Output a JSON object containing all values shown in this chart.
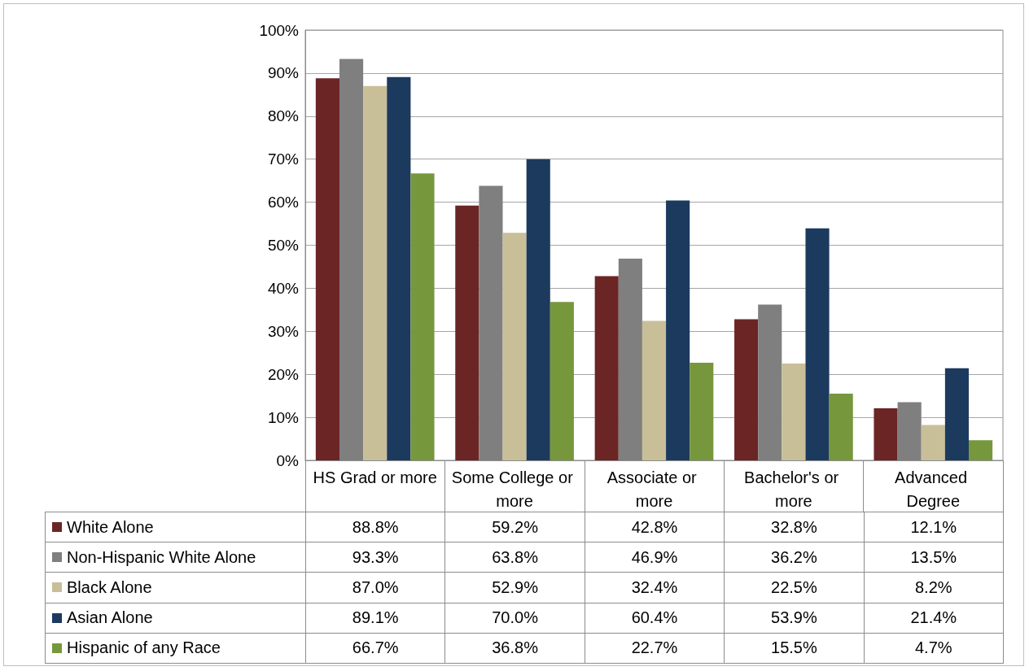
{
  "chart_data": {
    "type": "bar",
    "categories": [
      "HS Grad or more",
      "Some College or more",
      "Associate or more",
      "Bachelor's or more",
      "Advanced Degree"
    ],
    "series": [
      {
        "name": "White Alone",
        "color": "#6b2525",
        "values": [
          88.8,
          59.2,
          42.8,
          32.8,
          12.1
        ],
        "value_labels": [
          "88.8%",
          "59.2%",
          "42.8%",
          "32.8%",
          "12.1%"
        ]
      },
      {
        "name": "Non-Hispanic White Alone",
        "color": "#7f7f7f",
        "values": [
          93.3,
          63.8,
          46.9,
          36.2,
          13.5
        ],
        "value_labels": [
          "93.3%",
          "63.8%",
          "46.9%",
          "36.2%",
          "13.5%"
        ]
      },
      {
        "name": "Black Alone",
        "color": "#c8bf99",
        "values": [
          87.0,
          52.9,
          32.4,
          22.5,
          8.2
        ],
        "value_labels": [
          "87.0%",
          "52.9%",
          "32.4%",
          "22.5%",
          "8.2%"
        ]
      },
      {
        "name": "Asian Alone",
        "color": "#1c3a5e",
        "values": [
          89.1,
          70.0,
          60.4,
          53.9,
          21.4
        ],
        "value_labels": [
          "89.1%",
          "70.0%",
          "60.4%",
          "53.9%",
          "21.4%"
        ]
      },
      {
        "name": "Hispanic of any Race",
        "color": "#77973d",
        "values": [
          66.7,
          36.8,
          22.7,
          15.5,
          4.7
        ],
        "value_labels": [
          "66.7%",
          "36.8%",
          "22.7%",
          "15.5%",
          "4.7%"
        ]
      }
    ],
    "ylim": [
      0,
      100
    ],
    "yticks": [
      {
        "value": 0,
        "label": "0%"
      },
      {
        "value": 10,
        "label": "10%"
      },
      {
        "value": 20,
        "label": "20%"
      },
      {
        "value": 30,
        "label": "30%"
      },
      {
        "value": 40,
        "label": "40%"
      },
      {
        "value": 50,
        "label": "50%"
      },
      {
        "value": 60,
        "label": "60%"
      },
      {
        "value": 70,
        "label": "70%"
      },
      {
        "value": 80,
        "label": "80%"
      },
      {
        "value": 90,
        "label": "90%"
      },
      {
        "value": 100,
        "label": "100%"
      }
    ],
    "grid": "y",
    "legend": "bottom left"
  }
}
